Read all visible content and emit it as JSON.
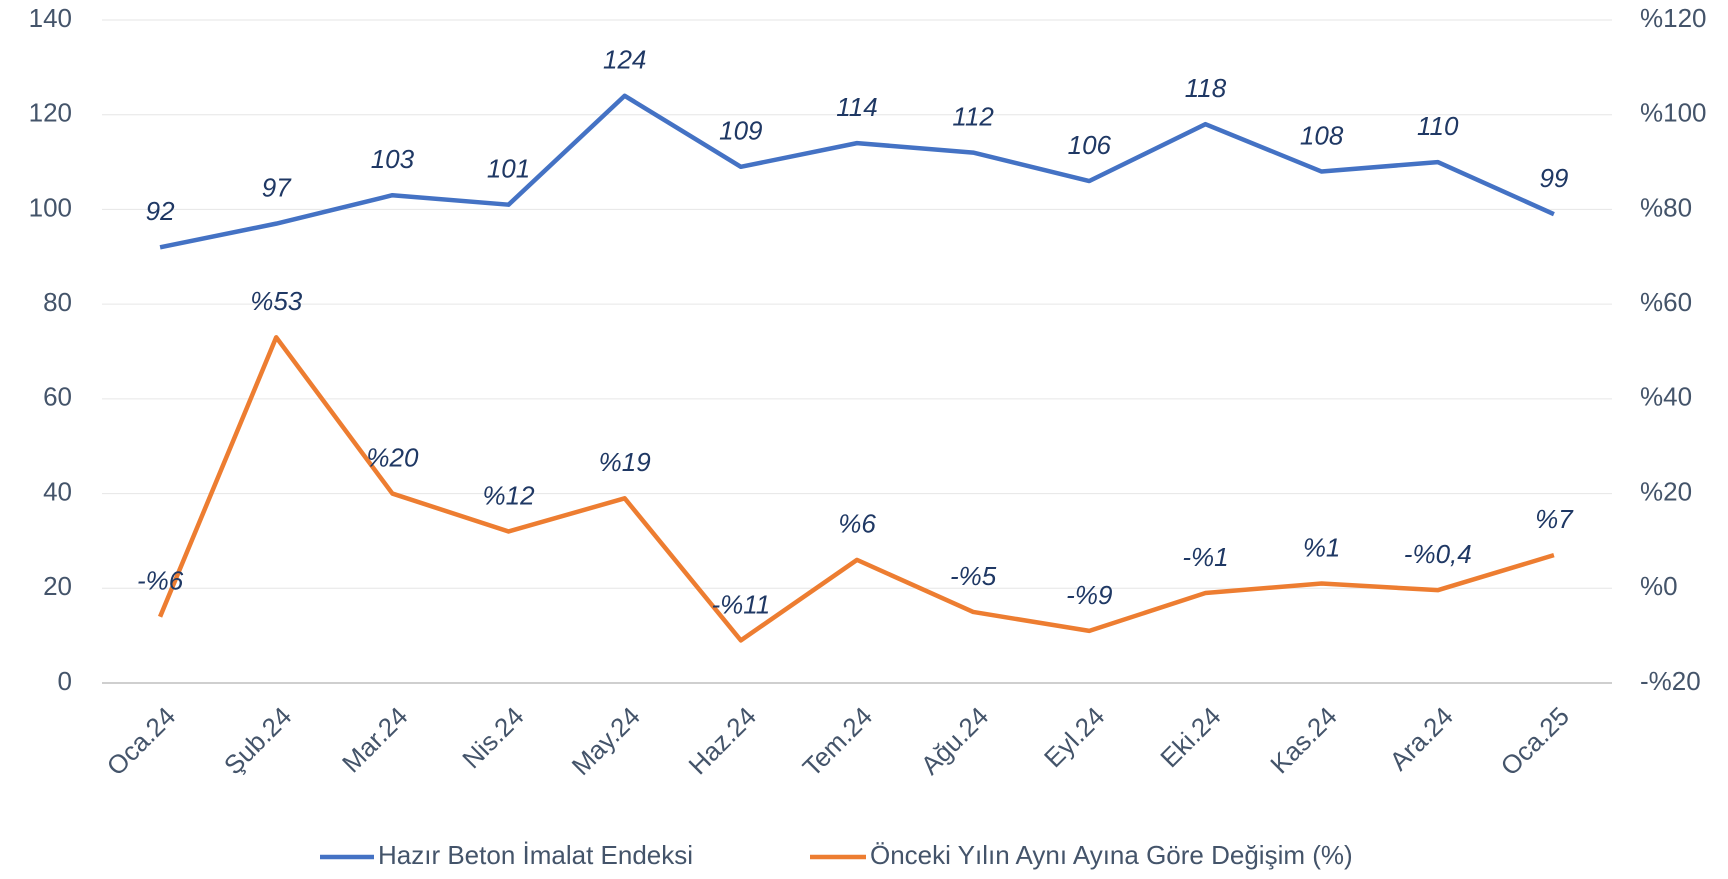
{
  "chart_data": {
    "type": "line",
    "categories": [
      "Oca.24",
      "Şub.24",
      "Mar.24",
      "Nis.24",
      "May.24",
      "Haz.24",
      "Tem.24",
      "Ağu.24",
      "Eyl.24",
      "Eki.24",
      "Kas.24",
      "Ara.24",
      "Oca.25"
    ],
    "series": [
      {
        "name": "Hazır Beton İmalat Endeksi",
        "color": "#4472c4",
        "values": [
          92,
          97,
          103,
          101,
          124,
          109,
          114,
          112,
          106,
          118,
          108,
          110,
          99
        ]
      },
      {
        "name": "Önceki Yılın Aynı Ayına Göre Değişim (%)",
        "color": "#ed7d31",
        "axis": "y2",
        "values": [
          -6,
          53,
          20,
          12,
          19,
          -11,
          6,
          -5,
          -9,
          -1,
          1,
          -0.4,
          7
        ],
        "value_labels": [
          "-%6",
          "%53",
          "%20",
          "%12",
          "%19",
          "-%11",
          "%6",
          "-%5",
          "-%9",
          "-%1",
          "%1",
          "-%0,4",
          "%7"
        ]
      }
    ],
    "ylim": [
      0,
      140
    ],
    "yticks": [
      0,
      20,
      40,
      60,
      80,
      100,
      120,
      140
    ],
    "y2lim": [
      -20,
      120
    ],
    "y2ticks": [
      {
        "value": -20,
        "label": "-%20"
      },
      {
        "value": 0,
        "label": "%0"
      },
      {
        "value": 20,
        "label": "%20"
      },
      {
        "value": 40,
        "label": "%40"
      },
      {
        "value": 60,
        "label": "%60"
      },
      {
        "value": 80,
        "label": "%80"
      },
      {
        "value": 100,
        "label": "%100"
      },
      {
        "value": 120,
        "label": "%120"
      }
    ],
    "grid": true,
    "legend": "bottom"
  }
}
